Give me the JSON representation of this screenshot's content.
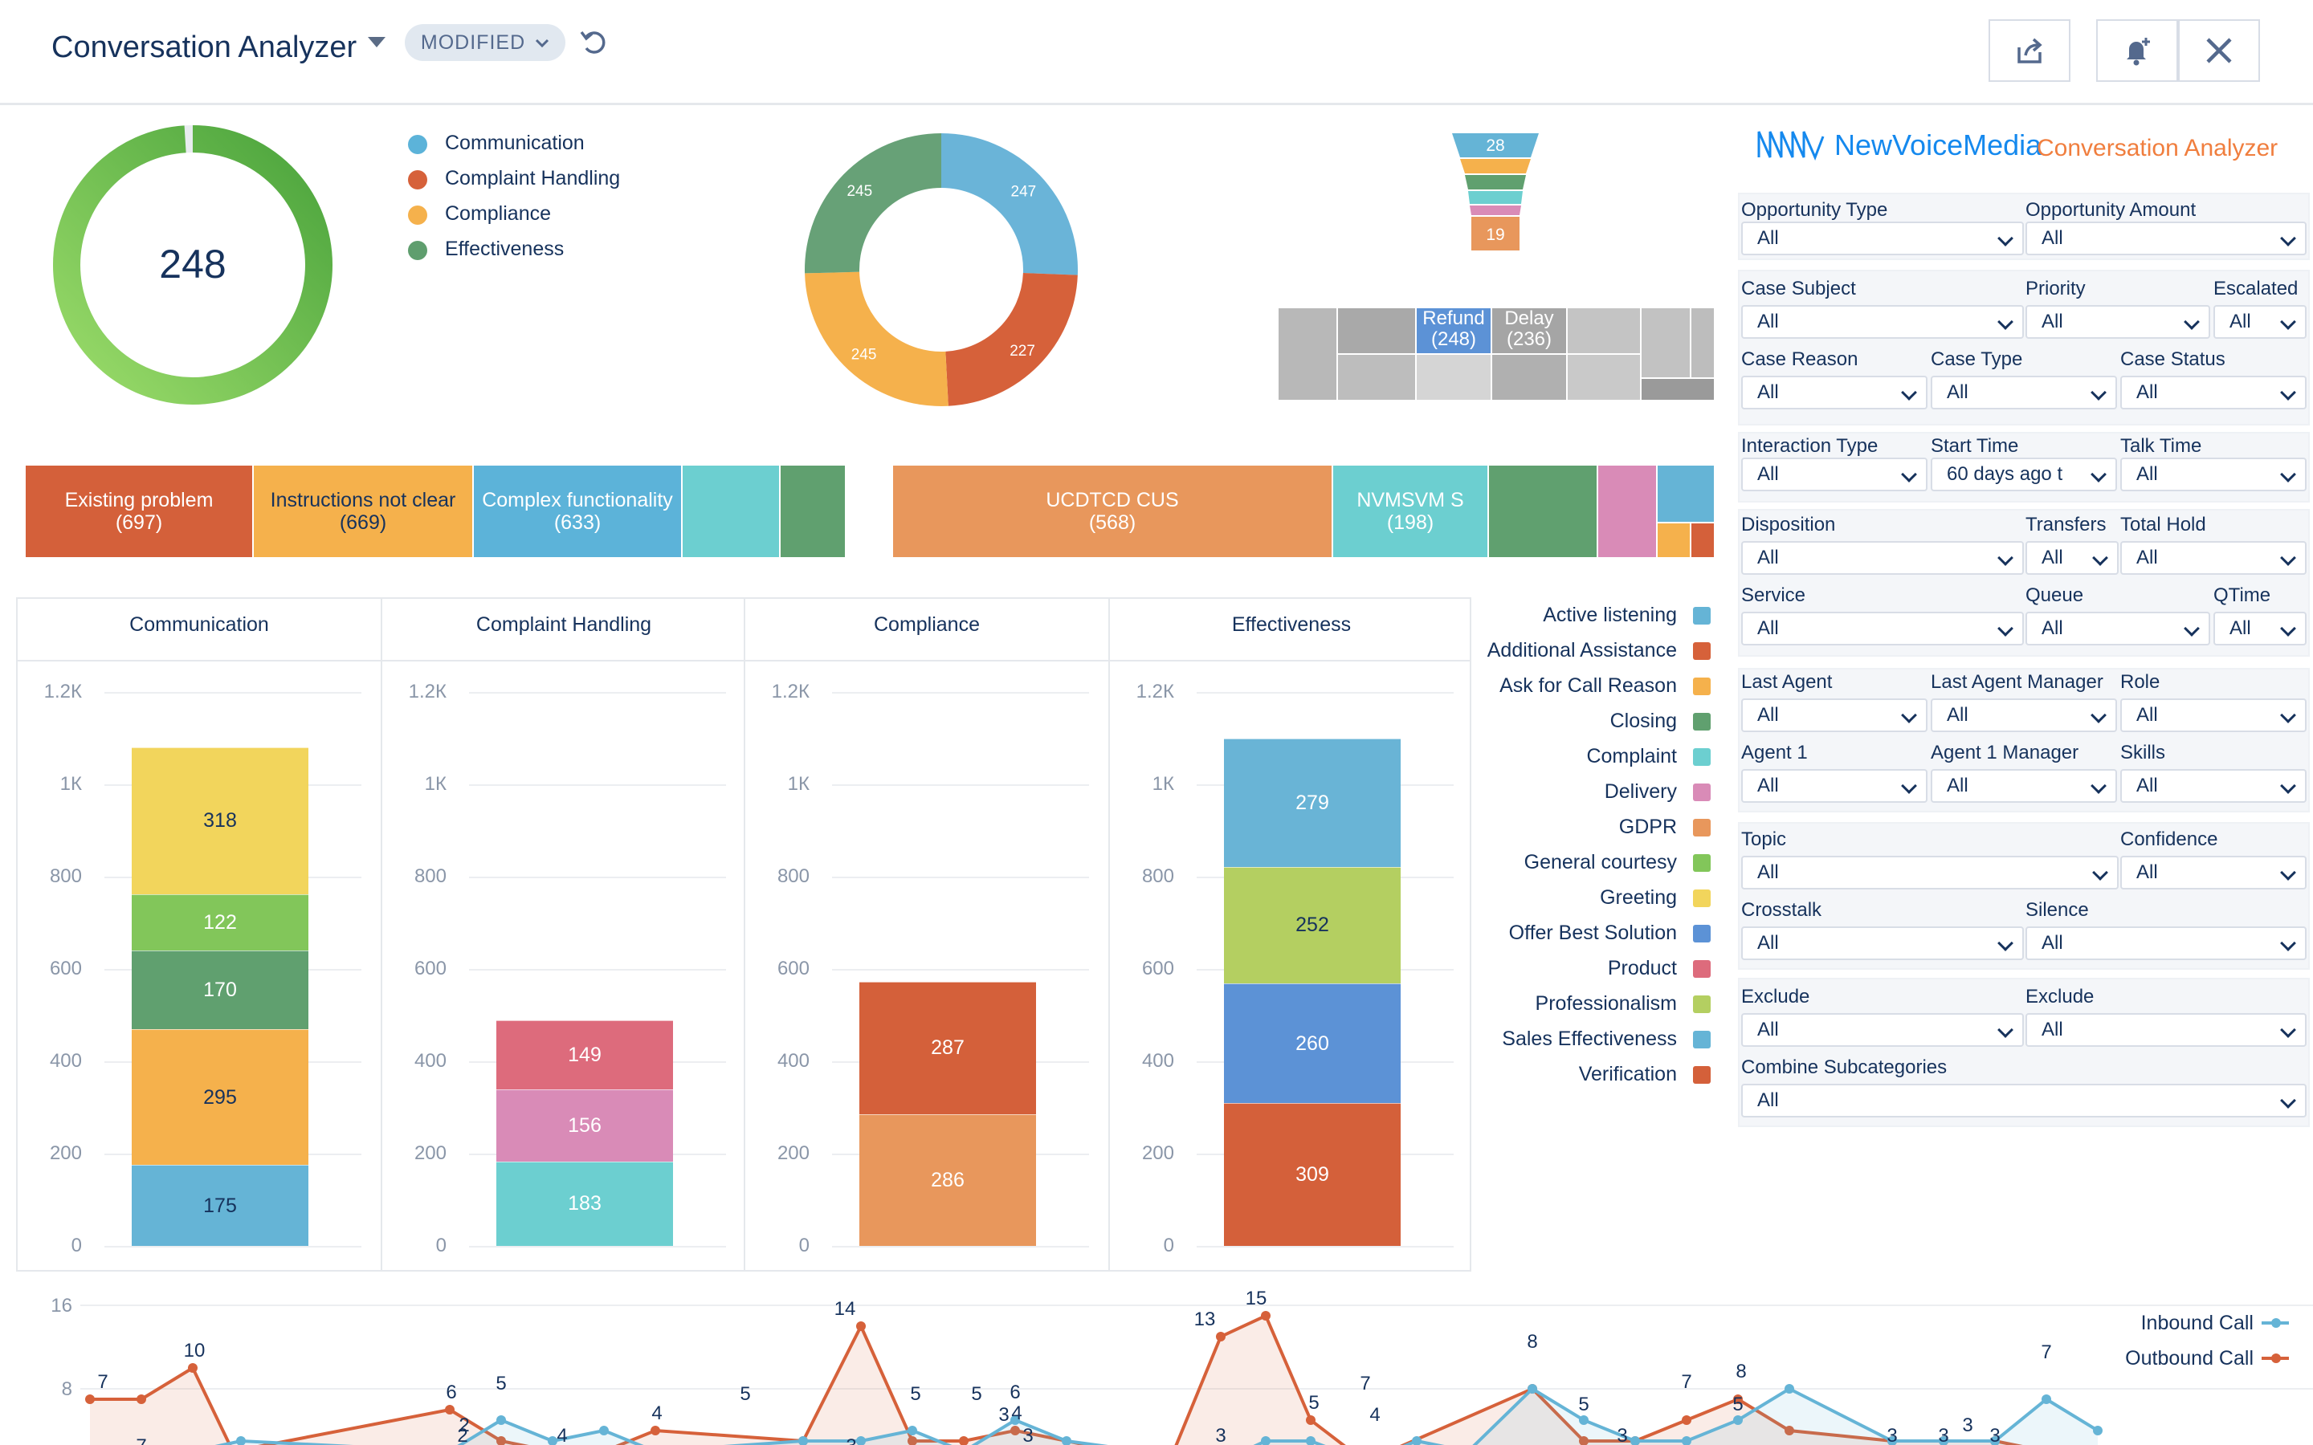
{
  "header": {
    "title": "Conversation Analyzer",
    "status_pill": "MODIFIED",
    "icons": [
      "undo-icon",
      "share-icon",
      "bell-add-icon",
      "close-icon"
    ]
  },
  "gauge": {
    "value": "248",
    "fraction": 0.99,
    "color": "#62b54a"
  },
  "legend": [
    {
      "label": "Communication",
      "color": "#5cb3d9"
    },
    {
      "label": "Complaint Handling",
      "color": "#d6613a"
    },
    {
      "label": "Compliance",
      "color": "#f5b14c"
    },
    {
      "label": "Effectiveness",
      "color": "#5f9e6e"
    }
  ],
  "donut": {
    "segments": [
      {
        "label": "247",
        "value": 247,
        "color": "#6ab4d8"
      },
      {
        "label": "227",
        "value": 227,
        "color": "#d6613a"
      },
      {
        "label": "245",
        "value": 245,
        "color": "#f5b14c"
      },
      {
        "label": "245",
        "value": 245,
        "color": "#67a177"
      }
    ]
  },
  "funnel": {
    "top_label": "28",
    "bottom_label": "19"
  },
  "treemap_small": {
    "refund": {
      "name": "Refund",
      "count": "(248)"
    },
    "delay": {
      "name": "Delay",
      "count": "(236)"
    }
  },
  "treemap_left": [
    {
      "name": "Existing problem",
      "count": "(697)",
      "color": "#d4603a"
    },
    {
      "name": "Instructions not clear",
      "count": "(669)",
      "color": "#f5b14c"
    },
    {
      "name": "Complex functionality",
      "count": "(633)",
      "color": "#5cb3d9"
    }
  ],
  "treemap_right": [
    {
      "name": "UCDTCD CUS",
      "count": "(568)",
      "color": "#e8975c"
    },
    {
      "name": "NVMSVM S",
      "count": "(198)",
      "color": "#6ccfd0"
    }
  ],
  "bar_panels": [
    {
      "title": "Communication",
      "segments": [
        {
          "value": 175,
          "label": "175",
          "color": "#65b4d6"
        },
        {
          "value": 295,
          "label": "295",
          "color": "#f5b14c"
        },
        {
          "value": 170,
          "label": "170",
          "color": "#60a06f",
          "light": true
        },
        {
          "value": 122,
          "label": "122",
          "color": "#82c65a",
          "light": true
        },
        {
          "value": 318,
          "label": "318",
          "color": "#f2d55c"
        }
      ]
    },
    {
      "title": "Complaint Handling",
      "segments": [
        {
          "value": 183,
          "label": "183",
          "color": "#6ccfd0",
          "light": true
        },
        {
          "value": 156,
          "label": "156",
          "color": "#d98bb7",
          "light": true
        },
        {
          "value": 149,
          "label": "149",
          "color": "#dd6b7c",
          "light": true
        }
      ]
    },
    {
      "title": "Compliance",
      "segments": [
        {
          "value": 286,
          "label": "286",
          "color": "#e8975c",
          "light": true
        },
        {
          "value": 287,
          "label": "287",
          "color": "#d4603a",
          "light": true
        }
      ]
    },
    {
      "title": "Effectiveness",
      "segments": [
        {
          "value": 309,
          "label": "309",
          "color": "#d4603a",
          "light": true
        },
        {
          "value": 260,
          "label": "260",
          "color": "#5c92d6",
          "light": true
        },
        {
          "value": 252,
          "label": "252",
          "color": "#b4cf61"
        },
        {
          "value": 279,
          "label": "279",
          "color": "#69b4d6",
          "light": true
        }
      ]
    }
  ],
  "y_axis": {
    "ticks": [
      "0",
      "200",
      "400",
      "600",
      "800",
      "1К",
      "1.2К"
    ],
    "max": 1200
  },
  "right_legend": [
    {
      "label": "Active listening",
      "color": "#65b4d6"
    },
    {
      "label": "Additional Assistance",
      "color": "#d6613a"
    },
    {
      "label": "Ask for Call Reason",
      "color": "#f5b14c"
    },
    {
      "label": "Closing",
      "color": "#60a06f"
    },
    {
      "label": "Complaint",
      "color": "#6ccfd0"
    },
    {
      "label": "Delivery",
      "color": "#d98bb7"
    },
    {
      "label": "GDPR",
      "color": "#e8975c"
    },
    {
      "label": "General courtesy",
      "color": "#82c65a"
    },
    {
      "label": "Greeting",
      "color": "#f2d55c"
    },
    {
      "label": "Offer Best Solution",
      "color": "#5c92d6"
    },
    {
      "label": "Product",
      "color": "#dd6b7c"
    },
    {
      "label": "Professionalism",
      "color": "#b4cf61"
    },
    {
      "label": "Sales Effectiveness",
      "color": "#65b4d6"
    },
    {
      "label": "Verification",
      "color": "#d4603a"
    }
  ],
  "brand": {
    "name": "NewVoiceMedia",
    "product": "Conversation Analyzer"
  },
  "filters": {
    "opportunity_type": {
      "label": "Opportunity Type",
      "value": "All"
    },
    "opportunity_amount": {
      "label": "Opportunity Amount",
      "value": "All"
    },
    "case_subject": {
      "label": "Case Subject",
      "value": "All"
    },
    "priority": {
      "label": "Priority",
      "value": "All"
    },
    "escalated": {
      "label": "Escalated",
      "value": "All"
    },
    "case_reason": {
      "label": "Case Reason",
      "value": "All"
    },
    "case_type": {
      "label": "Case Type",
      "value": "All"
    },
    "case_status": {
      "label": "Case Status",
      "value": "All"
    },
    "interaction_type": {
      "label": "Interaction Type",
      "value": "All"
    },
    "start_time": {
      "label": "Start Time",
      "value": "60 days ago t"
    },
    "talk_time": {
      "label": "Talk Time",
      "value": "All"
    },
    "disposition": {
      "label": "Disposition",
      "value": "All"
    },
    "transfers": {
      "label": "Transfers",
      "value": "All"
    },
    "total_hold": {
      "label": "Total Hold",
      "value": "All"
    },
    "service": {
      "label": "Service",
      "value": "All"
    },
    "queue": {
      "label": "Queue",
      "value": "All"
    },
    "qtime": {
      "label": "QTime",
      "value": "All"
    },
    "last_agent": {
      "label": "Last Agent",
      "value": "All"
    },
    "last_agent_manager": {
      "label": "Last Agent Manager",
      "value": "All"
    },
    "role": {
      "label": "Role",
      "value": "All"
    },
    "agent_1": {
      "label": "Agent 1",
      "value": "All"
    },
    "agent_1_manager": {
      "label": "Agent 1 Manager",
      "value": "All"
    },
    "skills": {
      "label": "Skills",
      "value": "All"
    },
    "topic": {
      "label": "Topic",
      "value": "All"
    },
    "confidence": {
      "label": "Confidence",
      "value": "All"
    },
    "crosstalk": {
      "label": "Crosstalk",
      "value": "All"
    },
    "silence": {
      "label": "Silence",
      "value": "All"
    },
    "exclude_1": {
      "label": "Exclude",
      "value": "All"
    },
    "exclude_2": {
      "label": "Exclude",
      "value": "All"
    },
    "combine_subcategories": {
      "label": "Combine Subcategories",
      "value": "All"
    }
  },
  "line_chart": {
    "y_ticks": [
      "16",
      "8"
    ],
    "legend": [
      {
        "label": "Inbound Call",
        "color": "#65b4d6"
      },
      {
        "label": "Outbound Call",
        "color": "#d6613a"
      }
    ],
    "outbound_labels": [
      "7",
      "10",
      "6",
      "4",
      "14",
      "4",
      "6",
      "13",
      "15",
      "5",
      "7",
      "8"
    ],
    "inbound_labels": [
      "7",
      "5",
      "3",
      "5",
      "4",
      "2",
      "2",
      "3",
      "5",
      "5",
      "3",
      "3",
      "3",
      "7",
      "4",
      "5",
      "3",
      "8",
      "3",
      "3",
      "3",
      "7",
      "5",
      "3"
    ]
  }
}
